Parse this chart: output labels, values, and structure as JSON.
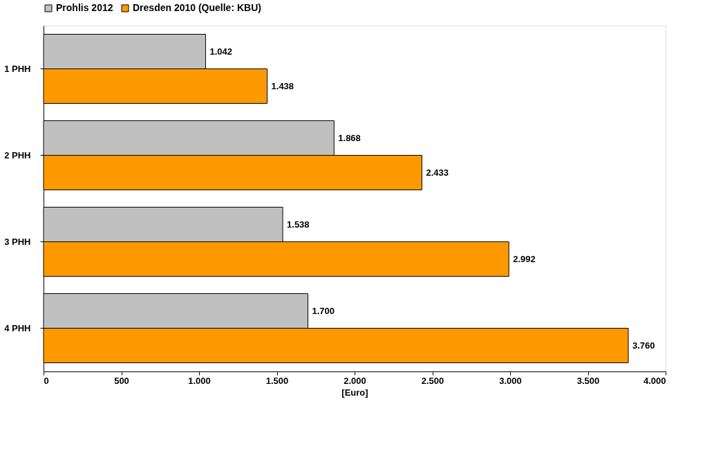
{
  "chart_data": {
    "type": "bar",
    "orientation": "horizontal",
    "categories": [
      "1 PHH",
      "2 PHH",
      "3 PHH",
      "4 PHH"
    ],
    "series": [
      {
        "name": "Prohlis 2012",
        "color": "#c0c0c0",
        "values": [
          1042,
          1868,
          1538,
          1700
        ],
        "value_labels": [
          "1.042",
          "1.868",
          "1.538",
          "1.700"
        ]
      },
      {
        "name": "Dresden 2010 (Quelle: KBU)",
        "color": "#ff9900",
        "values": [
          1438,
          2433,
          2992,
          3760
        ],
        "value_labels": [
          "1.438",
          "2.433",
          "2.992",
          "3.760"
        ]
      }
    ],
    "xlabel": "[Euro]",
    "xlim": [
      0,
      4000
    ],
    "xticks": [
      0,
      500,
      {
        "value": 1000,
        "label": "1.000"
      },
      {
        "value": 1500,
        "label": "1.500"
      },
      {
        "value": 2000,
        "label": "2.000"
      },
      {
        "value": 2500,
        "label": "2.500"
      },
      {
        "value": 3000,
        "label": "3.000"
      },
      {
        "value": 3500,
        "label": "3.500"
      },
      {
        "value": 4000,
        "label": "4.000"
      }
    ],
    "legend": "top",
    "grid": false
  }
}
